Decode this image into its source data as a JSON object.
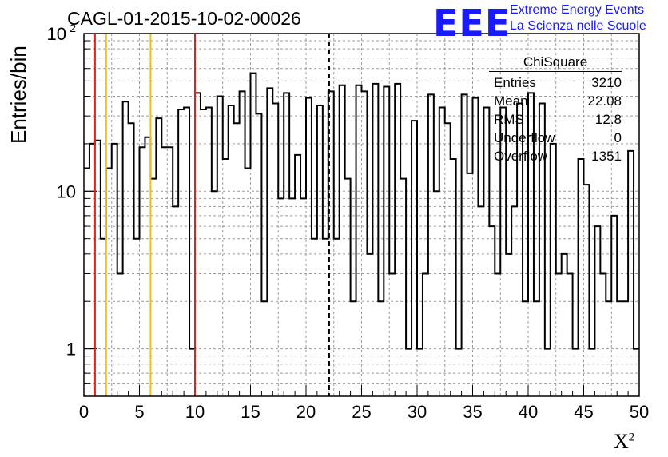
{
  "title": "CAGL-01-2015-10-02-00026",
  "logo": {
    "text": "EEE",
    "line1": "Extreme Energy Events",
    "line2": "La Scienza nelle Scuole"
  },
  "stats": {
    "name": "ChiSquare",
    "rows": [
      {
        "label": "Entries",
        "value": "3210"
      },
      {
        "label": "Mean",
        "value": "22.08"
      },
      {
        "label": "RMS",
        "value": "12.8"
      },
      {
        "label": "Underflow",
        "value": "0"
      },
      {
        "label": "Overflow",
        "value": "1351"
      }
    ]
  },
  "chart_data": {
    "type": "histogram",
    "title": "CAGL-01-2015-10-02-00026",
    "xlabel": "X",
    "xlabel_superscript": "2",
    "ylabel": "Entries/bin",
    "xlim": [
      0,
      50
    ],
    "ylim": [
      0.5,
      100
    ],
    "yscale": "log",
    "grid": true,
    "bin_width": 0.5,
    "x_ticks": [
      "0",
      "5",
      "10",
      "15",
      "20",
      "25",
      "30",
      "35",
      "40",
      "45",
      "50"
    ],
    "y_ticks": [
      {
        "value": 1,
        "label": "1"
      },
      {
        "value": 10,
        "label": "10"
      },
      {
        "value": 100,
        "label": "10",
        "sup": "2"
      }
    ],
    "bin_values": [
      14,
      20,
      21,
      5,
      14,
      20,
      3,
      37,
      27,
      5,
      19,
      22,
      12,
      29,
      19,
      19,
      8,
      33,
      34,
      1,
      42,
      33,
      34,
      10,
      40,
      16,
      35,
      27,
      43,
      14,
      56,
      31,
      2,
      45,
      36,
      9,
      42,
      9,
      17,
      9,
      39,
      5,
      35,
      5,
      43,
      5,
      47,
      12,
      2,
      47,
      43,
      4,
      48,
      2,
      46,
      3,
      48,
      12,
      1,
      28,
      1,
      3,
      41,
      10,
      34,
      27,
      16,
      1,
      41,
      13,
      39,
      8,
      34,
      6,
      3,
      34,
      4,
      8,
      36,
      2,
      42,
      2,
      36,
      1,
      20,
      3,
      4,
      3,
      1,
      16,
      11,
      1,
      6,
      3,
      2,
      7,
      2,
      2,
      18,
      1
    ],
    "vertical_lines": [
      {
        "x": 1,
        "color": "#e02020",
        "style": "solid"
      },
      {
        "x": 2,
        "color": "#f0c020",
        "style": "solid"
      },
      {
        "x": 6,
        "color": "#f0c020",
        "style": "solid"
      },
      {
        "x": 10,
        "color": "#e02020",
        "style": "solid"
      },
      {
        "x": 22.08,
        "color": "#000000",
        "style": "dashed"
      }
    ]
  }
}
